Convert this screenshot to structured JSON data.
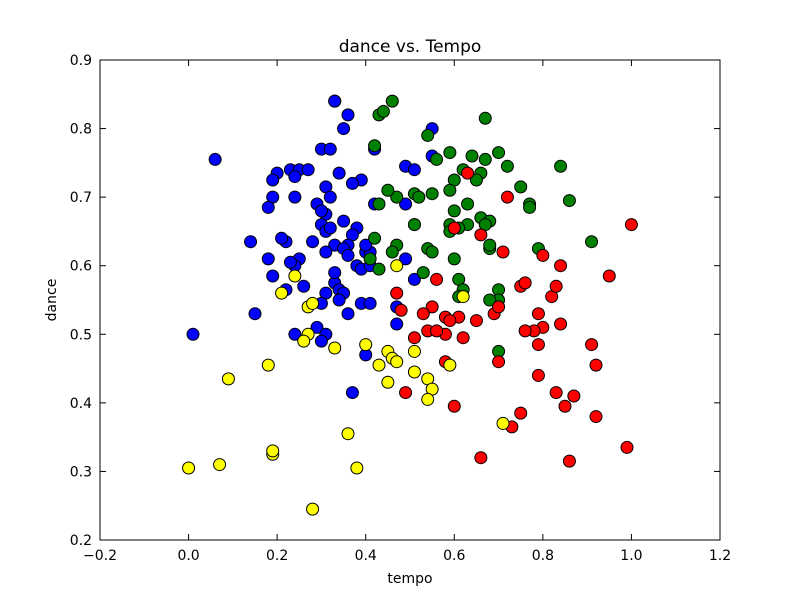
{
  "chart_data": {
    "type": "scatter",
    "title": "dance vs. Tempo",
    "xlabel": "tempo",
    "ylabel": "dance",
    "xlim": [
      -0.2,
      1.2
    ],
    "ylim": [
      0.2,
      0.9
    ],
    "x_ticks": [
      "−0.2",
      "0.0",
      "0.2",
      "0.4",
      "0.6",
      "0.8",
      "1.0",
      "1.2"
    ],
    "y_ticks": [
      "0.2",
      "0.3",
      "0.4",
      "0.5",
      "0.6",
      "0.7",
      "0.8",
      "0.9"
    ],
    "grid": false,
    "legend": "none",
    "marker_edge_color": "#000000",
    "series": [
      {
        "color": "#0000ff",
        "points": [
          [
            0.33,
            0.84
          ],
          [
            0.36,
            0.82
          ],
          [
            0.33,
            0.84
          ],
          [
            0.35,
            0.8
          ],
          [
            0.55,
            0.8
          ],
          [
            0.42,
            0.77
          ],
          [
            0.3,
            0.77
          ],
          [
            0.32,
            0.77
          ],
          [
            0.06,
            0.755
          ],
          [
            0.55,
            0.76
          ],
          [
            0.23,
            0.74
          ],
          [
            0.25,
            0.74
          ],
          [
            0.2,
            0.735
          ],
          [
            0.27,
            0.74
          ],
          [
            0.24,
            0.73
          ],
          [
            0.19,
            0.725
          ],
          [
            0.34,
            0.735
          ],
          [
            0.39,
            0.725
          ],
          [
            0.37,
            0.72
          ],
          [
            0.31,
            0.715
          ],
          [
            0.32,
            0.7
          ],
          [
            0.29,
            0.69
          ],
          [
            0.24,
            0.7
          ],
          [
            0.19,
            0.7
          ],
          [
            0.31,
            0.675
          ],
          [
            0.3,
            0.68
          ],
          [
            0.18,
            0.685
          ],
          [
            0.49,
            0.745
          ],
          [
            0.51,
            0.74
          ],
          [
            0.35,
            0.665
          ],
          [
            0.3,
            0.66
          ],
          [
            0.31,
            0.65
          ],
          [
            0.32,
            0.655
          ],
          [
            0.38,
            0.655
          ],
          [
            0.37,
            0.645
          ],
          [
            0.33,
            0.63
          ],
          [
            0.28,
            0.635
          ],
          [
            0.22,
            0.635
          ],
          [
            0.21,
            0.64
          ],
          [
            0.14,
            0.635
          ],
          [
            0.36,
            0.63
          ],
          [
            0.35,
            0.625
          ],
          [
            0.4,
            0.62
          ],
          [
            0.41,
            0.62
          ],
          [
            0.36,
            0.615
          ],
          [
            0.31,
            0.62
          ],
          [
            0.18,
            0.61
          ],
          [
            0.25,
            0.61
          ],
          [
            0.24,
            0.6
          ],
          [
            0.23,
            0.605
          ],
          [
            0.38,
            0.6
          ],
          [
            0.39,
            0.595
          ],
          [
            0.41,
            0.6
          ],
          [
            0.33,
            0.575
          ],
          [
            0.34,
            0.565
          ],
          [
            0.35,
            0.56
          ],
          [
            0.31,
            0.56
          ],
          [
            0.19,
            0.585
          ],
          [
            0.22,
            0.565
          ],
          [
            0.26,
            0.57
          ],
          [
            0.3,
            0.545
          ],
          [
            0.36,
            0.53
          ],
          [
            0.39,
            0.545
          ],
          [
            0.41,
            0.545
          ],
          [
            0.34,
            0.55
          ],
          [
            0.15,
            0.53
          ],
          [
            0.29,
            0.51
          ],
          [
            0.31,
            0.5
          ],
          [
            0.3,
            0.49
          ],
          [
            0.24,
            0.5
          ],
          [
            0.01,
            0.5
          ],
          [
            0.47,
            0.515
          ],
          [
            0.47,
            0.54
          ],
          [
            0.4,
            0.47
          ],
          [
            0.37,
            0.415
          ],
          [
            0.4,
            0.63
          ],
          [
            0.49,
            0.69
          ],
          [
            0.51,
            0.66
          ],
          [
            0.49,
            0.61
          ],
          [
            0.51,
            0.58
          ],
          [
            0.33,
            0.59
          ],
          [
            0.42,
            0.69
          ]
        ]
      },
      {
        "color": "#008000",
        "points": [
          [
            0.46,
            0.84
          ],
          [
            0.43,
            0.82
          ],
          [
            0.44,
            0.825
          ],
          [
            0.67,
            0.815
          ],
          [
            0.54,
            0.79
          ],
          [
            0.42,
            0.775
          ],
          [
            0.59,
            0.765
          ],
          [
            0.64,
            0.76
          ],
          [
            0.67,
            0.755
          ],
          [
            0.7,
            0.765
          ],
          [
            0.72,
            0.745
          ],
          [
            0.56,
            0.755
          ],
          [
            0.66,
            0.735
          ],
          [
            0.65,
            0.725
          ],
          [
            0.62,
            0.74
          ],
          [
            0.84,
            0.745
          ],
          [
            0.75,
            0.715
          ],
          [
            0.6,
            0.725
          ],
          [
            0.59,
            0.71
          ],
          [
            0.63,
            0.69
          ],
          [
            0.77,
            0.69
          ],
          [
            0.77,
            0.685
          ],
          [
            0.86,
            0.695
          ],
          [
            0.55,
            0.705
          ],
          [
            0.51,
            0.705
          ],
          [
            0.52,
            0.7
          ],
          [
            0.47,
            0.7
          ],
          [
            0.43,
            0.69
          ],
          [
            0.6,
            0.68
          ],
          [
            0.66,
            0.67
          ],
          [
            0.63,
            0.66
          ],
          [
            0.59,
            0.66
          ],
          [
            0.68,
            0.665
          ],
          [
            0.67,
            0.66
          ],
          [
            0.61,
            0.655
          ],
          [
            0.59,
            0.65
          ],
          [
            0.45,
            0.71
          ],
          [
            0.51,
            0.66
          ],
          [
            0.47,
            0.63
          ],
          [
            0.54,
            0.625
          ],
          [
            0.55,
            0.62
          ],
          [
            0.6,
            0.61
          ],
          [
            0.46,
            0.62
          ],
          [
            0.68,
            0.625
          ],
          [
            0.91,
            0.635
          ],
          [
            0.79,
            0.625
          ],
          [
            0.68,
            0.63
          ],
          [
            0.41,
            0.61
          ],
          [
            0.43,
            0.595
          ],
          [
            0.53,
            0.59
          ],
          [
            0.61,
            0.58
          ],
          [
            0.7,
            0.565
          ],
          [
            0.62,
            0.565
          ],
          [
            0.61,
            0.555
          ],
          [
            0.7,
            0.55
          ],
          [
            0.68,
            0.55
          ],
          [
            0.7,
            0.475
          ],
          [
            0.42,
            0.64
          ]
        ]
      },
      {
        "color": "#ff0000",
        "points": [
          [
            1.0,
            0.66
          ],
          [
            0.95,
            0.585
          ],
          [
            0.84,
            0.6
          ],
          [
            0.8,
            0.615
          ],
          [
            0.72,
            0.7
          ],
          [
            0.71,
            0.62
          ],
          [
            0.63,
            0.735
          ],
          [
            0.66,
            0.645
          ],
          [
            0.6,
            0.655
          ],
          [
            0.56,
            0.58
          ],
          [
            0.47,
            0.56
          ],
          [
            0.55,
            0.54
          ],
          [
            0.48,
            0.535
          ],
          [
            0.53,
            0.53
          ],
          [
            0.58,
            0.525
          ],
          [
            0.61,
            0.525
          ],
          [
            0.59,
            0.52
          ],
          [
            0.65,
            0.52
          ],
          [
            0.69,
            0.53
          ],
          [
            0.7,
            0.54
          ],
          [
            0.75,
            0.57
          ],
          [
            0.76,
            0.575
          ],
          [
            0.79,
            0.53
          ],
          [
            0.8,
            0.51
          ],
          [
            0.78,
            0.505
          ],
          [
            0.76,
            0.505
          ],
          [
            0.82,
            0.555
          ],
          [
            0.83,
            0.57
          ],
          [
            0.84,
            0.515
          ],
          [
            0.91,
            0.485
          ],
          [
            0.92,
            0.455
          ],
          [
            0.79,
            0.485
          ],
          [
            0.79,
            0.44
          ],
          [
            0.83,
            0.415
          ],
          [
            0.85,
            0.395
          ],
          [
            0.87,
            0.41
          ],
          [
            0.92,
            0.38
          ],
          [
            0.75,
            0.385
          ],
          [
            0.73,
            0.365
          ],
          [
            0.58,
            0.5
          ],
          [
            0.58,
            0.46
          ],
          [
            0.51,
            0.495
          ],
          [
            0.54,
            0.505
          ],
          [
            0.56,
            0.505
          ],
          [
            0.62,
            0.495
          ],
          [
            0.7,
            0.46
          ],
          [
            0.6,
            0.395
          ],
          [
            0.49,
            0.415
          ],
          [
            0.66,
            0.32
          ],
          [
            0.86,
            0.315
          ],
          [
            0.99,
            0.335
          ]
        ]
      },
      {
        "color": "#ffff00",
        "points": [
          [
            0.24,
            0.585
          ],
          [
            0.21,
            0.56
          ],
          [
            0.27,
            0.54
          ],
          [
            0.28,
            0.545
          ],
          [
            0.27,
            0.5
          ],
          [
            0.26,
            0.49
          ],
          [
            0.33,
            0.48
          ],
          [
            0.4,
            0.485
          ],
          [
            0.47,
            0.6
          ],
          [
            0.45,
            0.475
          ],
          [
            0.46,
            0.465
          ],
          [
            0.47,
            0.46
          ],
          [
            0.43,
            0.455
          ],
          [
            0.51,
            0.475
          ],
          [
            0.51,
            0.445
          ],
          [
            0.54,
            0.435
          ],
          [
            0.55,
            0.42
          ],
          [
            0.54,
            0.405
          ],
          [
            0.45,
            0.43
          ],
          [
            0.59,
            0.455
          ],
          [
            0.62,
            0.555
          ],
          [
            0.18,
            0.455
          ],
          [
            0.09,
            0.435
          ],
          [
            0.36,
            0.355
          ],
          [
            0.19,
            0.325
          ],
          [
            0.19,
            0.33
          ],
          [
            0.07,
            0.31
          ],
          [
            0.0,
            0.305
          ],
          [
            0.38,
            0.305
          ],
          [
            0.28,
            0.245
          ],
          [
            0.71,
            0.37
          ]
        ]
      }
    ]
  }
}
